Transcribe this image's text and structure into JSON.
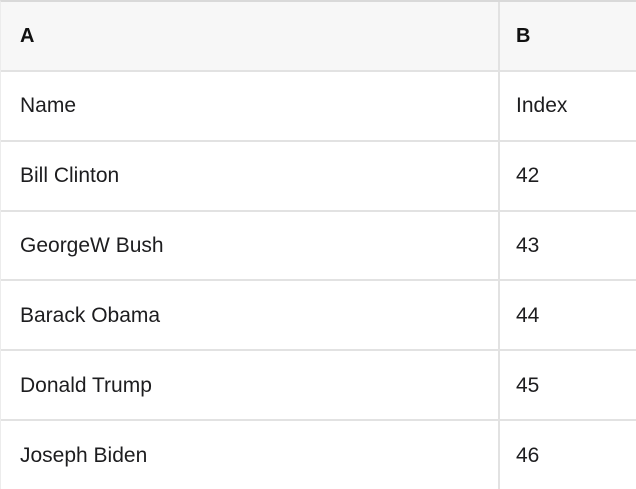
{
  "table": {
    "column_headers": [
      {
        "label": "A"
      },
      {
        "label": "B"
      }
    ],
    "rows": [
      {
        "name": "Name",
        "index": "Index"
      },
      {
        "name": "Bill Clinton",
        "index": "42"
      },
      {
        "name": "GeorgeW Bush",
        "index": "43"
      },
      {
        "name": "Barack Obama",
        "index": "44"
      },
      {
        "name": "Donald Trump",
        "index": "45"
      },
      {
        "name": "Joseph Biden",
        "index": "46"
      }
    ],
    "colors": {
      "header_bg": "#f7f7f7",
      "border": "#e2e2e2",
      "top_border": "#d9d9d9",
      "text": "#1d1d1f",
      "header_text": "#111111",
      "row_bg": "#ffffff"
    }
  }
}
